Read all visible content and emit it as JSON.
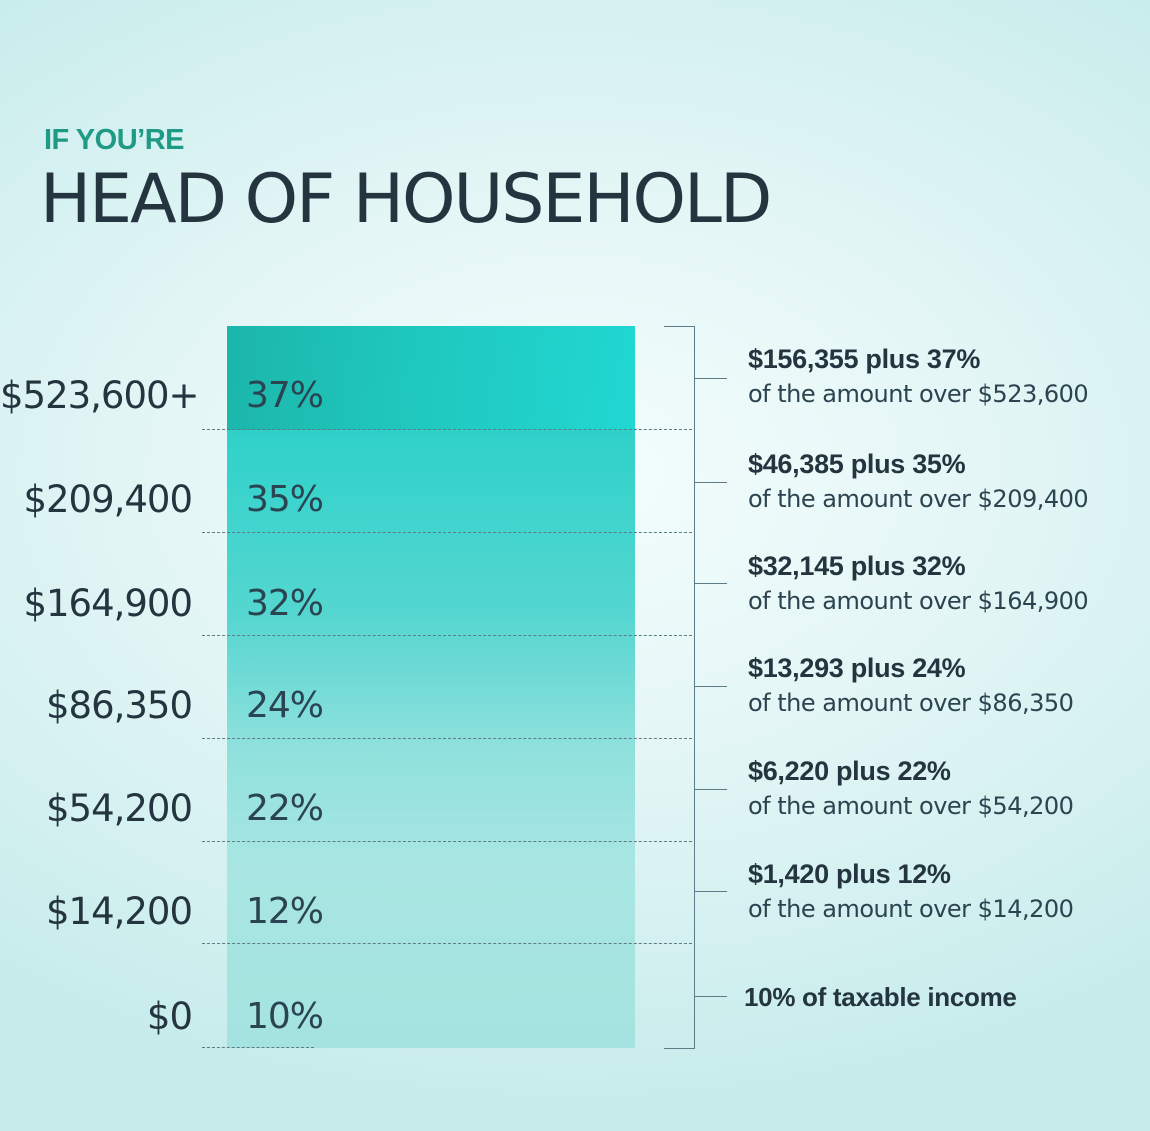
{
  "header": {
    "eyebrow": "IF YOU’RE",
    "title": "HEAD OF HOUSEHOLD"
  },
  "brackets": [
    {
      "threshold": "$523,600+",
      "rate": "37%",
      "tax_line": "$156,355 plus 37%",
      "detail": "of the amount over $523,600"
    },
    {
      "threshold": "$209,400",
      "rate": "35%",
      "tax_line": "$46,385 plus 35%",
      "detail": "of the amount over $209,400"
    },
    {
      "threshold": "$164,900",
      "rate": "32%",
      "tax_line": "$32,145 plus 32%",
      "detail": "of the amount over $164,900"
    },
    {
      "threshold": "$86,350",
      "rate": "24%",
      "tax_line": "$13,293 plus 24%",
      "detail": "of the amount over $86,350"
    },
    {
      "threshold": "$54,200",
      "rate": "22%",
      "tax_line": "$6,220 plus 22%",
      "detail": "of the amount over $54,200"
    },
    {
      "threshold": "$14,200",
      "rate": "12%",
      "tax_line": "$1,420 plus 12%",
      "detail": "of the amount over $14,200"
    },
    {
      "threshold": "$0",
      "rate": "10%",
      "tax_line": "10% of taxable income",
      "detail": ""
    }
  ],
  "colors": {
    "accent": "#1f9a84",
    "text": "#24353f",
    "column_top": "#21c9c2",
    "column_bottom": "#a4e3df"
  }
}
